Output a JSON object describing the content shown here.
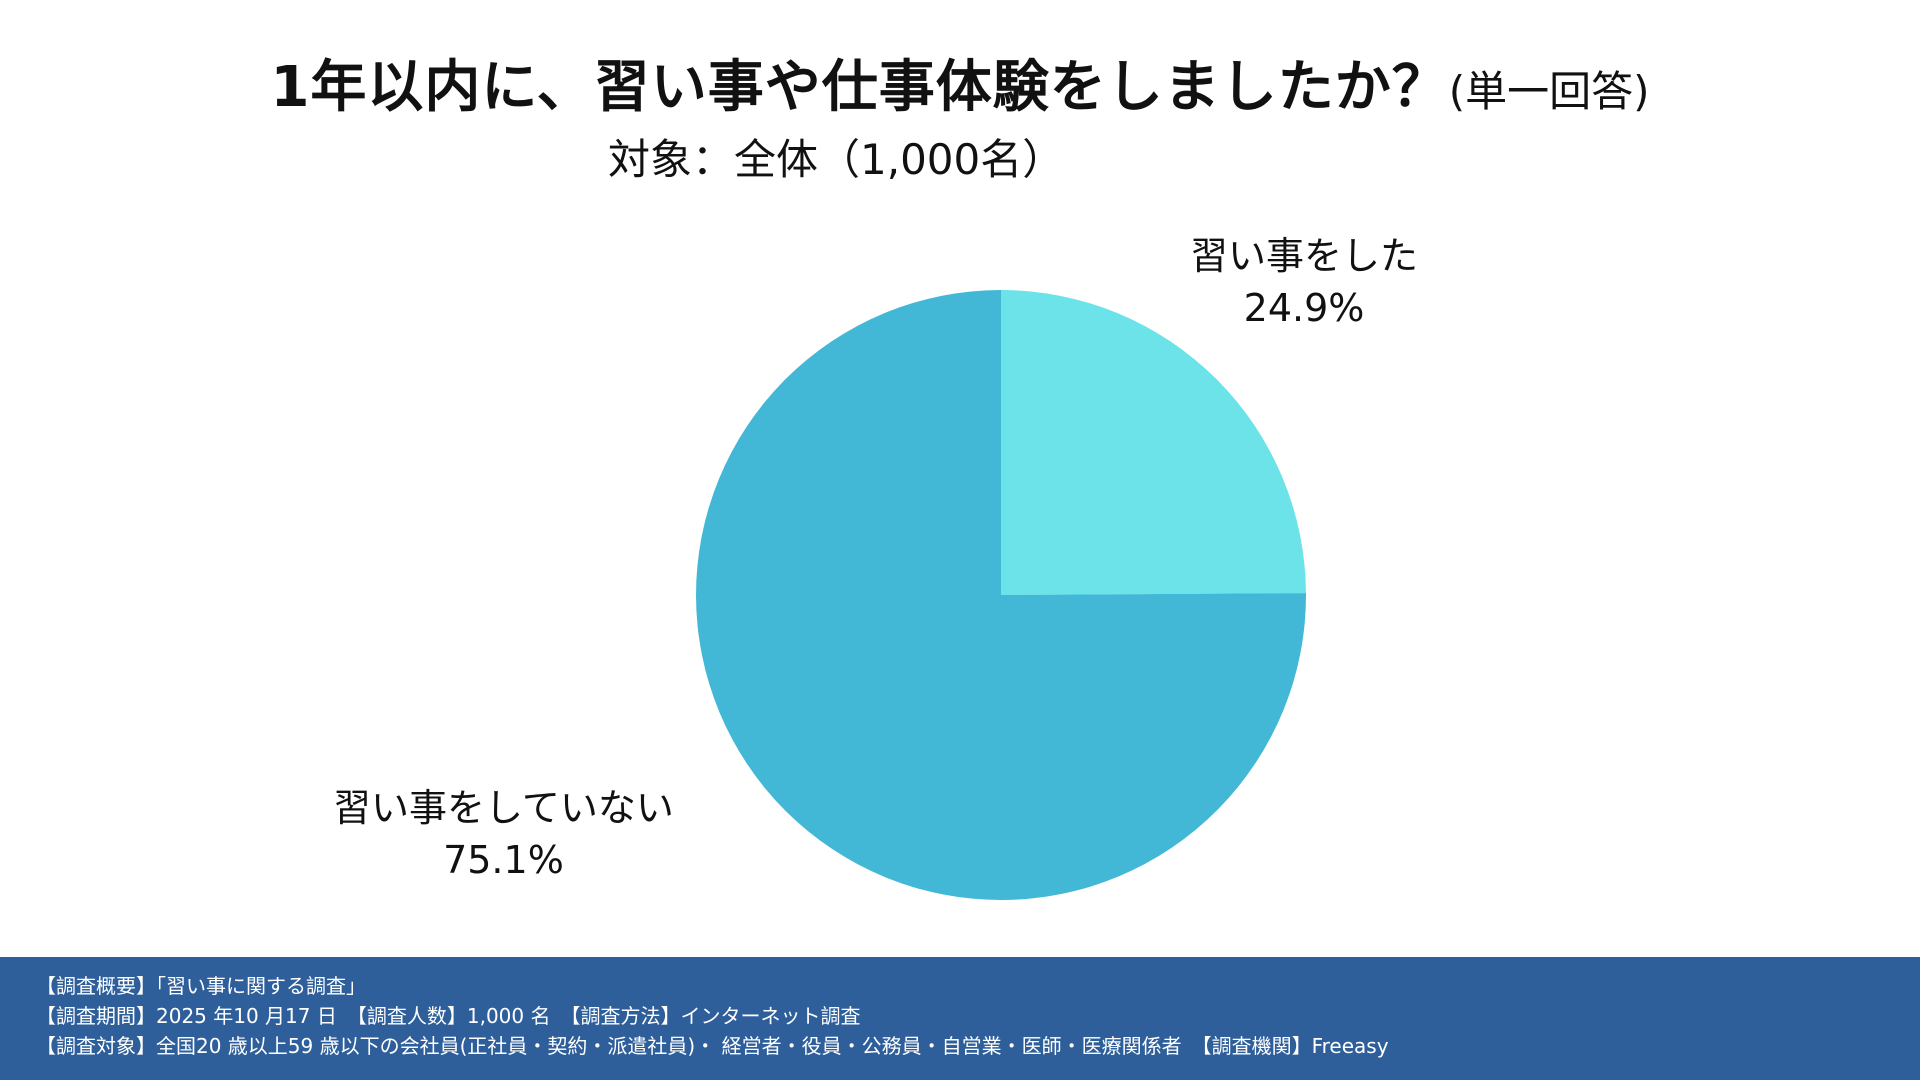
{
  "title": {
    "main": "1年以内に、習い事や仕事体験をしましたか？",
    "note": "(単一回答)"
  },
  "subtitle": "対象：全体（1,000名）",
  "chart_data": {
    "type": "pie",
    "title": "1年以内に、習い事や仕事体験をしましたか？(単一回答)",
    "subtitle": "対象：全体（1,000名）",
    "slices": [
      {
        "label": "習い事をした",
        "value": 24.9,
        "value_label": "24.9%",
        "color": "#6ce3e8"
      },
      {
        "label": "習い事をしていない",
        "value": 75.1,
        "value_label": "75.1%",
        "color": "#42b8d6"
      }
    ],
    "start_angle": "12 o'clock",
    "direction": "clockwise"
  },
  "footer": {
    "lines": [
      "【調査概要】「習い事に関する調査」",
      "【調査期間】2025 年10 月17 日　【調査人数】1,000 名　【調査方法】インターネット調査",
      "【調査対象】全国20 歳以上59 歳以下の会社員(正社員・契約・派遣社員)・ 経営者・役員・公務員・自営業・医師・医療関係者　【調査機関】Freeasy"
    ],
    "background": "#2e5f9b"
  }
}
